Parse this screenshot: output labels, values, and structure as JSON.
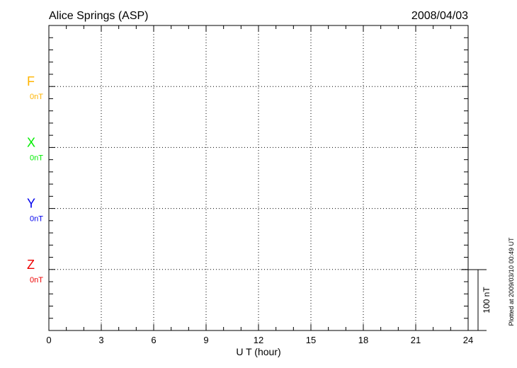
{
  "chart_data": {
    "type": "line",
    "title": "Alice Springs (ASP)",
    "date": "2008/04/03",
    "xlabel": "U T (hour)",
    "xlim": [
      0,
      24
    ],
    "xticks": [
      "0",
      "3",
      "6",
      "9",
      "12",
      "15",
      "18",
      "21",
      "24"
    ],
    "grid": true,
    "series": [
      {
        "name": "F",
        "baseline_label": "0nT",
        "color": "#ffb400",
        "values": []
      },
      {
        "name": "X",
        "baseline_label": "0nT",
        "color": "#00ee00",
        "values": []
      },
      {
        "name": "Y",
        "baseline_label": "0nT",
        "color": "#0000ee",
        "values": []
      },
      {
        "name": "Z",
        "baseline_label": "0nT",
        "color": "#ee0000",
        "values": []
      }
    ],
    "scale_bar_label": "100 nT",
    "footer": "Plotted at 2009/03/10 00:49 UT"
  }
}
